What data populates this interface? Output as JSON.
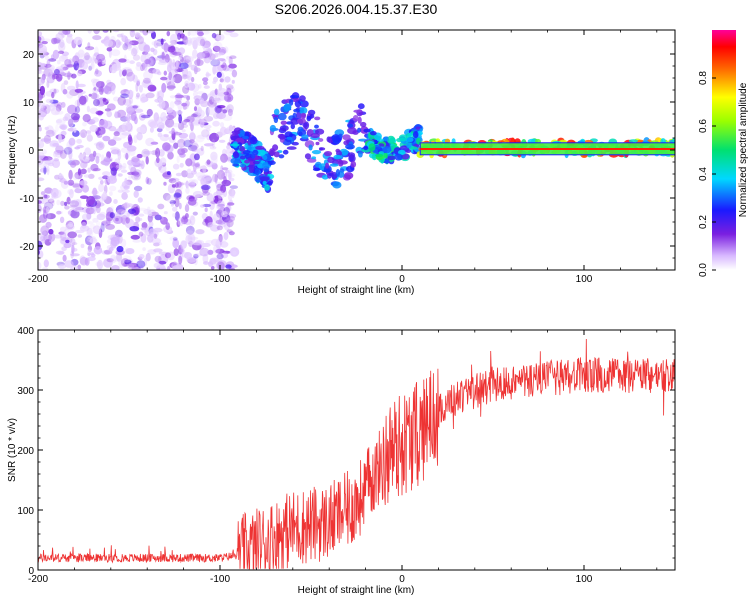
{
  "title": "S206.2026.004.15.37.E30",
  "chart_data": [
    {
      "type": "heatmap",
      "name": "spectrogram",
      "xlabel": "Height of straight line (km)",
      "ylabel": "Frequency (Hz)",
      "xlim": [
        -200,
        150
      ],
      "ylim": [
        -25,
        25
      ],
      "xticks": [
        -200,
        -100,
        0,
        100
      ],
      "yticks": [
        -20,
        -10,
        0,
        10,
        20
      ],
      "colorbar": {
        "label": "Normalized spectral amplitude",
        "range": [
          0,
          1
        ],
        "ticks": [
          0.0,
          0.2,
          0.4,
          0.6,
          0.8
        ]
      },
      "regions": [
        {
          "x": [
            -200,
            -92
          ],
          "freq": [
            -25,
            25
          ],
          "amplitude": 0.12,
          "description": "noise"
        },
        {
          "x": [
            -92,
            -72
          ],
          "freq": [
            -8,
            3
          ],
          "amplitude": 0.35
        },
        {
          "x": [
            -72,
            -20
          ],
          "freq": [
            -6,
            10
          ],
          "amplitude": 0.3
        },
        {
          "x": [
            -20,
            10
          ],
          "freq": [
            -2,
            5
          ],
          "amplitude": 0.45
        },
        {
          "x": [
            10,
            150
          ],
          "freq": [
            -1,
            2
          ],
          "amplitude": 0.8,
          "center_freq": 0
        }
      ]
    },
    {
      "type": "line",
      "name": "snr",
      "xlabel": "Height of straight line (km)",
      "ylabel": "SNR (10 * v/v)",
      "xlim": [
        -200,
        150
      ],
      "ylim": [
        0,
        400
      ],
      "xticks": [
        -200,
        -100,
        0,
        100
      ],
      "yticks": [
        0,
        100,
        200,
        300,
        400
      ],
      "color": "#ee3333",
      "trend": [
        {
          "x": -200,
          "y": 20
        },
        {
          "x": -100,
          "y": 20
        },
        {
          "x": -90,
          "y": 25
        },
        {
          "x": -80,
          "y": 40
        },
        {
          "x": -60,
          "y": 70
        },
        {
          "x": -40,
          "y": 80
        },
        {
          "x": -25,
          "y": 110
        },
        {
          "x": -15,
          "y": 160
        },
        {
          "x": -5,
          "y": 200
        },
        {
          "x": 10,
          "y": 230
        },
        {
          "x": 25,
          "y": 280
        },
        {
          "x": 50,
          "y": 310
        },
        {
          "x": 100,
          "y": 325
        },
        {
          "x": 150,
          "y": 325
        }
      ]
    }
  ]
}
